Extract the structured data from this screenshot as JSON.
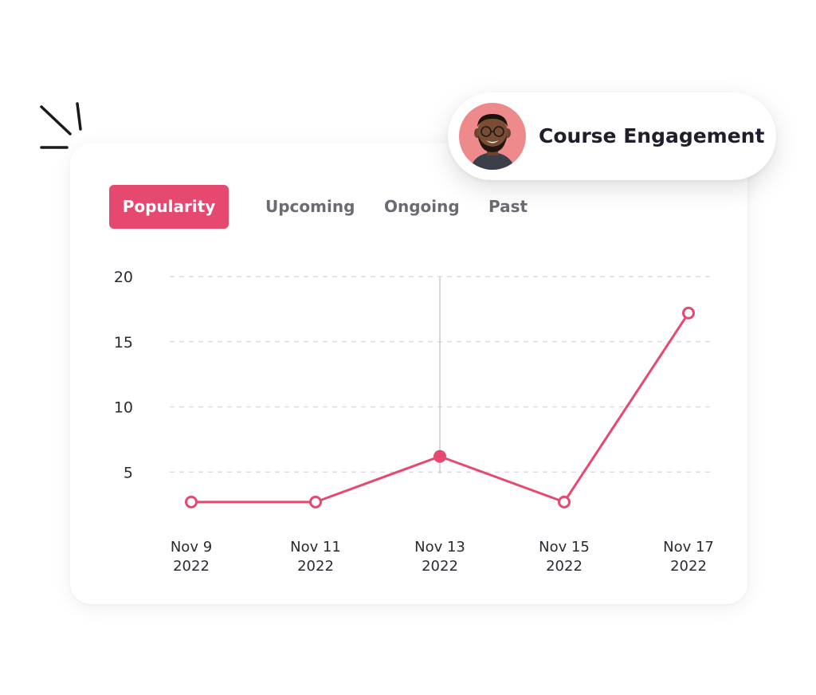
{
  "header": {
    "title": "Course Engagement"
  },
  "tabs": [
    {
      "label": "Popularity",
      "active": true
    },
    {
      "label": "Upcoming",
      "active": false
    },
    {
      "label": "Ongoing",
      "active": false
    },
    {
      "label": "Past",
      "active": false
    }
  ],
  "colors": {
    "accent": "#e5496f",
    "avatar_bg": "#ef8a8c",
    "grid": "#dcdcdc",
    "text": "#2a2a33"
  },
  "chart_data": {
    "type": "line",
    "categories": [
      [
        "Nov 9",
        "2022"
      ],
      [
        "Nov 11",
        "2022"
      ],
      [
        "Nov 13",
        "2022"
      ],
      [
        "Nov 15",
        "2022"
      ],
      [
        "Nov 17",
        "2022"
      ]
    ],
    "values": [
      2.7,
      2.7,
      6.2,
      2.7,
      17.2
    ],
    "yticks": [
      5,
      10,
      15,
      20
    ],
    "ylim": [
      0,
      20
    ],
    "highlight_index": 2,
    "grid": "dashed-horizontal"
  }
}
